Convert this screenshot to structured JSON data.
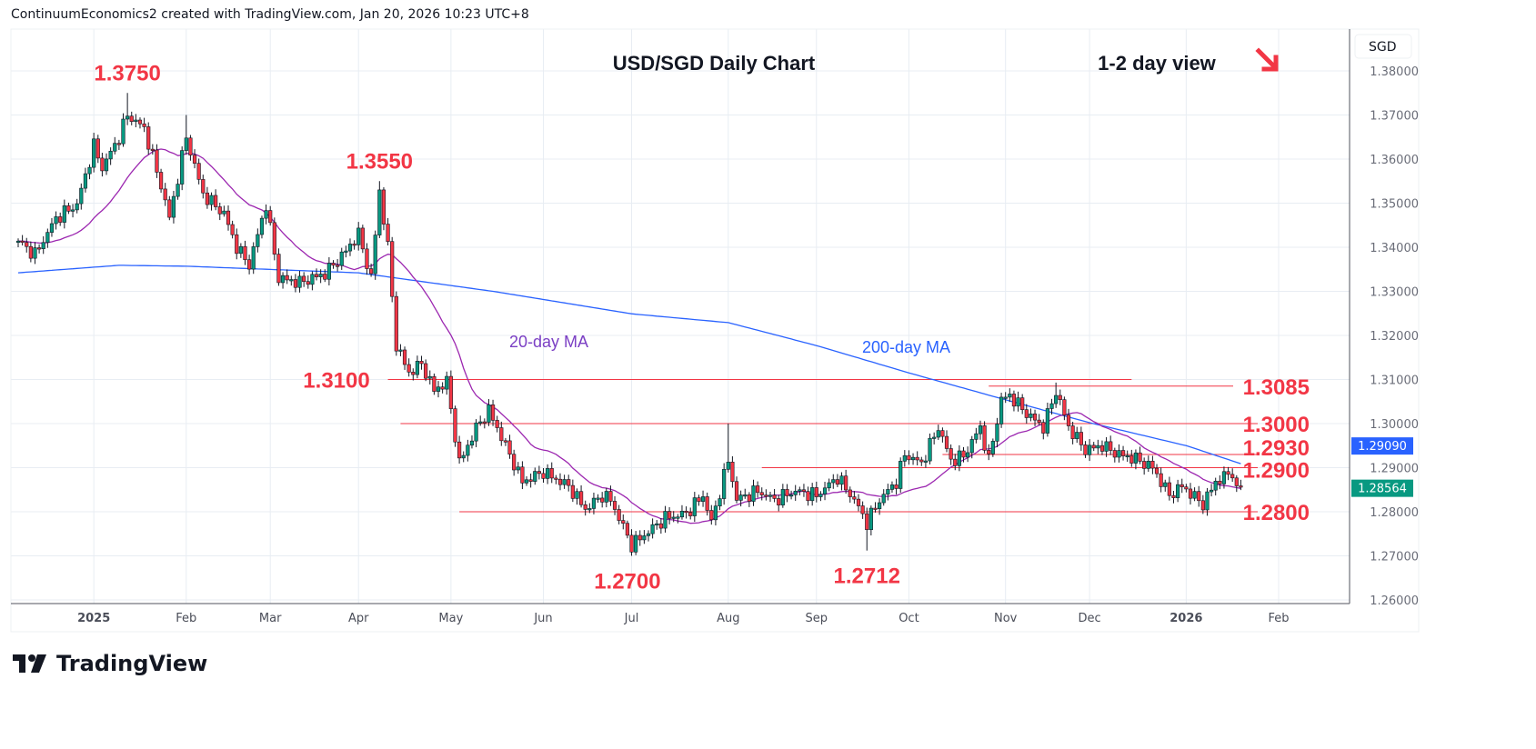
{
  "header": {
    "text": "ContinuumEconomics2 created with TradingView.com, Jan 20, 2026 10:23 UTC+8"
  },
  "brand": {
    "name": "TradingView"
  },
  "colors": {
    "up": "#089981",
    "down": "#f23645",
    "ma20": "#9c27b0",
    "ma200": "#2962ff",
    "level": "#f23645",
    "grid": "#e8edf3"
  },
  "chart_data": {
    "type": "candlestick",
    "title": "USD/SGD Daily Chart",
    "subtitle": "1-2 day view",
    "view_arrow": "down-right",
    "currency": "SGD",
    "ylim": [
      1.26,
      1.39
    ],
    "yticks": [
      "1.38000",
      "1.37000",
      "1.36000",
      "1.35000",
      "1.34000",
      "1.33000",
      "1.32000",
      "1.31000",
      "1.30000",
      "1.29000",
      "1.28000",
      "1.27000",
      "1.26000"
    ],
    "start_date": "2024-12-09",
    "end_date": "2026-01-20",
    "xticks": [
      {
        "label": "2025",
        "date": "2025-01-02",
        "bold": true
      },
      {
        "label": "Feb",
        "date": "2025-02-03"
      },
      {
        "label": "Mar",
        "date": "2025-03-03"
      },
      {
        "label": "Apr",
        "date": "2025-04-01"
      },
      {
        "label": "May",
        "date": "2025-05-01"
      },
      {
        "label": "Jun",
        "date": "2025-06-02"
      },
      {
        "label": "Jul",
        "date": "2025-07-01"
      },
      {
        "label": "Aug",
        "date": "2025-08-01"
      },
      {
        "label": "Sep",
        "date": "2025-09-01"
      },
      {
        "label": "Oct",
        "date": "2025-10-01"
      },
      {
        "label": "Nov",
        "date": "2025-11-03"
      },
      {
        "label": "Dec",
        "date": "2025-12-01"
      },
      {
        "label": "2026",
        "date": "2026-01-01",
        "bold": true
      },
      {
        "label": "Feb",
        "date": "2026-02-02"
      }
    ],
    "close_anchors": [
      [
        "2024-12-09",
        1.3414
      ],
      [
        "2024-12-13",
        1.3383
      ],
      [
        "2024-12-20",
        1.3466
      ],
      [
        "2024-12-27",
        1.3497
      ],
      [
        "2025-01-02",
        1.363
      ],
      [
        "2025-01-06",
        1.358
      ],
      [
        "2025-01-10",
        1.365
      ],
      [
        "2025-01-14",
        1.37
      ],
      [
        "2025-01-20",
        1.367
      ],
      [
        "2025-01-24",
        1.354
      ],
      [
        "2025-01-28",
        1.3466
      ],
      [
        "2025-02-03",
        1.365
      ],
      [
        "2025-02-07",
        1.352
      ],
      [
        "2025-02-14",
        1.3476
      ],
      [
        "2025-02-19",
        1.34
      ],
      [
        "2025-02-24",
        1.336
      ],
      [
        "2025-02-28",
        1.3497
      ],
      [
        "2025-03-05",
        1.333
      ],
      [
        "2025-03-12",
        1.332
      ],
      [
        "2025-03-20",
        1.334
      ],
      [
        "2025-03-26",
        1.338
      ],
      [
        "2025-04-01",
        1.343
      ],
      [
        "2025-04-04",
        1.333
      ],
      [
        "2025-04-08",
        1.3528
      ],
      [
        "2025-04-10",
        1.34
      ],
      [
        "2025-04-14",
        1.3177
      ],
      [
        "2025-04-17",
        1.3115
      ],
      [
        "2025-04-22",
        1.3136
      ],
      [
        "2025-04-25",
        1.3075
      ],
      [
        "2025-04-30",
        1.3095
      ],
      [
        "2025-05-05",
        1.291
      ],
      [
        "2025-05-09",
        1.299
      ],
      [
        "2025-05-14",
        1.303
      ],
      [
        "2025-05-20",
        1.295
      ],
      [
        "2025-05-26",
        1.2868
      ],
      [
        "2025-06-02",
        1.289
      ],
      [
        "2025-06-10",
        1.2858
      ],
      [
        "2025-06-16",
        1.2806
      ],
      [
        "2025-06-20",
        1.2837
      ],
      [
        "2025-06-24",
        1.2827
      ],
      [
        "2025-07-01",
        1.2724
      ],
      [
        "2025-07-07",
        1.2755
      ],
      [
        "2025-07-11",
        1.2786
      ],
      [
        "2025-07-18",
        1.2796
      ],
      [
        "2025-07-24",
        1.2837
      ],
      [
        "2025-07-28",
        1.2775
      ],
      [
        "2025-08-01",
        1.2916
      ],
      [
        "2025-08-05",
        1.2828
      ],
      [
        "2025-08-12",
        1.2847
      ],
      [
        "2025-08-18",
        1.2827
      ],
      [
        "2025-08-25",
        1.2847
      ],
      [
        "2025-09-01",
        1.2837
      ],
      [
        "2025-09-08",
        1.2878
      ],
      [
        "2025-09-12",
        1.2827
      ],
      [
        "2025-09-17",
        1.2775
      ],
      [
        "2025-09-22",
        1.2827
      ],
      [
        "2025-09-26",
        1.2868
      ],
      [
        "2025-09-30",
        1.293
      ],
      [
        "2025-10-06",
        1.291
      ],
      [
        "2025-10-10",
        1.2992
      ],
      [
        "2025-10-15",
        1.2916
      ],
      [
        "2025-10-20",
        1.2926
      ],
      [
        "2025-10-24",
        1.2992
      ],
      [
        "2025-10-28",
        1.2916
      ],
      [
        "2025-10-31",
        1.3054
      ],
      [
        "2025-11-04",
        1.3064
      ],
      [
        "2025-11-10",
        1.3023
      ],
      [
        "2025-11-14",
        1.2992
      ],
      [
        "2025-11-19",
        1.3074
      ],
      [
        "2025-11-24",
        1.2992
      ],
      [
        "2025-11-28",
        1.294
      ],
      [
        "2025-12-04",
        1.295
      ],
      [
        "2025-12-10",
        1.293
      ],
      [
        "2025-12-16",
        1.292
      ],
      [
        "2025-12-22",
        1.29
      ],
      [
        "2025-12-26",
        1.2837
      ],
      [
        "2025-12-31",
        1.2858
      ],
      [
        "2026-01-07",
        1.2817
      ],
      [
        "2026-01-12",
        1.2868
      ],
      [
        "2026-01-16",
        1.289
      ],
      [
        "2026-01-19",
        1.2847
      ],
      [
        "2026-01-20",
        1.2856
      ]
    ],
    "ma200_anchors": [
      [
        "2024-12-09",
        1.3342
      ],
      [
        "2025-01-10",
        1.3359
      ],
      [
        "2025-02-03",
        1.3357
      ],
      [
        "2025-04-01",
        1.3342
      ],
      [
        "2025-05-15",
        1.33
      ],
      [
        "2025-07-01",
        1.3249
      ],
      [
        "2025-08-01",
        1.3229
      ],
      [
        "2025-09-01",
        1.3177
      ],
      [
        "2025-10-01",
        1.3115
      ],
      [
        "2025-11-01",
        1.3054
      ],
      [
        "2025-12-01",
        1.3002
      ],
      [
        "2026-01-01",
        1.295
      ],
      [
        "2026-01-20",
        1.2909
      ]
    ],
    "series_labels": {
      "ma20": "20-day MA",
      "ma200": "200-day MA"
    },
    "last_values": {
      "ma200": "1.29090",
      "close": "1.28564"
    },
    "levels": [
      {
        "value": 1.31,
        "from": "2025-04-10",
        "to": "2025-12-15"
      },
      {
        "value": 1.3085,
        "from": "2025-10-28",
        "to": "2026-01-20",
        "label": "1.3085"
      },
      {
        "value": 1.3,
        "from": "2025-04-15",
        "to": "2026-01-23",
        "label": "1.3000"
      },
      {
        "value": 1.293,
        "from": "2025-10-13",
        "to": "2026-01-23",
        "label": "1.2930"
      },
      {
        "value": 1.29,
        "from": "2025-08-13",
        "to": "2026-01-23",
        "label": "1.2900"
      },
      {
        "value": 1.28,
        "from": "2025-05-05",
        "to": "2026-01-23",
        "label": "1.2800"
      }
    ],
    "annotations": [
      {
        "text": "1.3750",
        "date": "2025-01-14",
        "value": 1.375,
        "pos": "above"
      },
      {
        "text": "1.3550",
        "date": "2025-04-08",
        "value": 1.355,
        "pos": "above"
      },
      {
        "text": "1.3100",
        "date": "2025-04-01",
        "value": 1.31,
        "pos": "left"
      },
      {
        "text": "1.2700",
        "date": "2025-06-30",
        "value": 1.27,
        "pos": "below"
      },
      {
        "text": "1.2712",
        "date": "2025-09-17",
        "value": 1.2712,
        "pos": "below"
      }
    ],
    "extremes": [
      {
        "date": "2025-01-14",
        "high": 1.375
      },
      {
        "date": "2025-04-08",
        "high": 1.355
      },
      {
        "date": "2025-07-01",
        "low": 1.27
      },
      {
        "date": "2025-09-17",
        "low": 1.2712
      },
      {
        "date": "2025-11-19",
        "high": 1.3093
      },
      {
        "date": "2026-01-07",
        "low": 1.2795
      },
      {
        "date": "2025-08-01",
        "high": 1.3
      },
      {
        "date": "2025-02-03",
        "high": 1.37
      }
    ]
  }
}
